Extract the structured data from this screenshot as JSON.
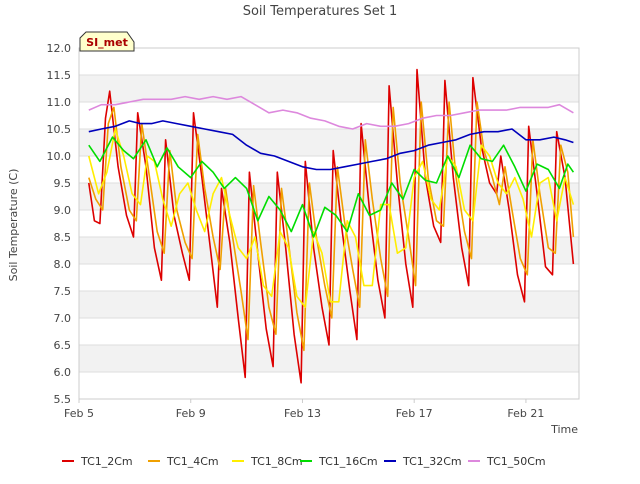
{
  "chart_data": {
    "type": "line",
    "title": "Soil Temperatures Set 1",
    "xlabel": "Time",
    "ylabel": "Soil Temperature (C)",
    "badge": "SI_met",
    "x_ticks": [
      "Feb 5",
      "Feb 9",
      "Feb 13",
      "Feb 17",
      "Feb 21"
    ],
    "y_ticks": [
      "5.5",
      "6.0",
      "6.5",
      "7.0",
      "7.5",
      "8.0",
      "8.5",
      "9.0",
      "9.5",
      "10.0",
      "10.5",
      "11.0",
      "11.5",
      "12.0"
    ],
    "xlim": [
      0,
      17.9
    ],
    "ylim": [
      5.5,
      12.0
    ],
    "legend_position": "bottom",
    "grid": true,
    "colors": {
      "TC1_2Cm": "#dd0000",
      "TC1_4Cm": "#f0a000",
      "TC1_8Cm": "#ffee00",
      "TC1_16Cm": "#00dd00",
      "TC1_32Cm": "#0000bb",
      "TC1_50Cm": "#dd88dd"
    },
    "series": [
      {
        "name": "TC1_2Cm",
        "x": [
          0.35,
          0.55,
          0.75,
          0.95,
          1.1,
          1.4,
          1.7,
          1.95,
          2.1,
          2.4,
          2.7,
          2.95,
          3.1,
          3.4,
          3.7,
          3.95,
          4.1,
          4.4,
          4.7,
          4.95,
          5.1,
          5.4,
          5.7,
          5.95,
          6.1,
          6.4,
          6.7,
          6.95,
          7.1,
          7.4,
          7.7,
          7.95,
          8.1,
          8.4,
          8.7,
          8.95,
          9.1,
          9.4,
          9.7,
          9.95,
          10.1,
          10.4,
          10.7,
          10.95,
          11.1,
          11.4,
          11.7,
          11.95,
          12.1,
          12.4,
          12.7,
          12.95,
          13.1,
          13.4,
          13.7,
          13.95,
          14.1,
          14.4,
          14.7,
          14.95,
          15.1,
          15.4,
          15.7,
          15.95,
          16.1,
          16.4,
          16.7,
          16.95,
          17.1,
          17.4,
          17.7
        ],
        "values": [
          9.5,
          8.8,
          8.75,
          10.7,
          11.2,
          9.8,
          8.9,
          8.5,
          10.8,
          9.8,
          8.3,
          7.7,
          10.3,
          8.9,
          8.2,
          7.7,
          10.8,
          9.6,
          8.3,
          7.2,
          9.4,
          8.4,
          7.0,
          5.9,
          9.7,
          8.2,
          6.8,
          6.1,
          9.7,
          8.3,
          6.7,
          5.8,
          9.9,
          8.3,
          7.2,
          6.5,
          10.1,
          8.7,
          7.5,
          6.6,
          10.6,
          9.0,
          7.7,
          7.0,
          11.3,
          9.5,
          8.0,
          7.2,
          11.6,
          9.6,
          8.7,
          8.4,
          11.4,
          9.6,
          8.3,
          7.6,
          11.45,
          10.2,
          9.5,
          9.3,
          10.0,
          9.0,
          7.8,
          7.3,
          10.55,
          9.3,
          7.95,
          7.8,
          10.45,
          9.6,
          8.0
        ]
      },
      {
        "name": "TC1_4Cm",
        "x": [
          0.35,
          0.6,
          0.85,
          1.05,
          1.25,
          1.5,
          1.8,
          2.05,
          2.25,
          2.5,
          2.8,
          3.05,
          3.25,
          3.5,
          3.8,
          4.05,
          4.25,
          4.5,
          4.8,
          5.05,
          5.25,
          5.5,
          5.8,
          6.05,
          6.25,
          6.5,
          6.8,
          7.05,
          7.25,
          7.5,
          7.8,
          8.05,
          8.25,
          8.5,
          8.8,
          9.05,
          9.25,
          9.5,
          9.8,
          10.05,
          10.25,
          10.5,
          10.8,
          11.05,
          11.25,
          11.5,
          11.8,
          12.05,
          12.25,
          12.5,
          12.8,
          13.05,
          13.25,
          13.5,
          13.8,
          14.05,
          14.25,
          14.5,
          14.8,
          15.05,
          15.25,
          15.5,
          15.8,
          16.05,
          16.25,
          16.5,
          16.8,
          17.05,
          17.25,
          17.5,
          17.7
        ],
        "values": [
          9.6,
          9.2,
          9.0,
          10.6,
          10.9,
          9.8,
          9.0,
          8.8,
          10.6,
          9.7,
          8.6,
          8.2,
          10.1,
          9.0,
          8.4,
          8.1,
          10.4,
          9.4,
          8.5,
          7.9,
          9.4,
          8.5,
          7.5,
          6.6,
          9.45,
          8.4,
          7.2,
          6.7,
          9.4,
          8.4,
          7.1,
          6.4,
          9.5,
          8.5,
          7.6,
          7.0,
          9.8,
          8.8,
          7.9,
          7.2,
          10.3,
          9.2,
          8.1,
          7.4,
          10.9,
          9.5,
          8.5,
          7.6,
          11.0,
          9.6,
          8.8,
          8.7,
          11.0,
          9.6,
          8.6,
          8.1,
          11.0,
          10.1,
          9.6,
          9.1,
          9.8,
          9.0,
          8.1,
          7.8,
          10.3,
          9.3,
          8.3,
          8.2,
          10.2,
          9.7,
          8.5
        ]
      },
      {
        "name": "TC1_8Cm",
        "x": [
          0.35,
          0.7,
          1.0,
          1.3,
          1.6,
          1.9,
          2.2,
          2.45,
          2.7,
          3.0,
          3.3,
          3.6,
          3.9,
          4.2,
          4.5,
          4.8,
          5.1,
          5.4,
          5.7,
          6.0,
          6.3,
          6.6,
          6.9,
          7.2,
          7.5,
          7.8,
          8.1,
          8.4,
          8.7,
          9.0,
          9.3,
          9.6,
          9.9,
          10.2,
          10.5,
          10.8,
          11.1,
          11.4,
          11.7,
          12.0,
          12.3,
          12.6,
          12.9,
          13.2,
          13.5,
          13.8,
          14.1,
          14.4,
          14.7,
          15.0,
          15.3,
          15.6,
          15.9,
          16.2,
          16.5,
          16.8,
          17.1,
          17.4,
          17.7
        ],
        "values": [
          10.0,
          9.3,
          9.7,
          10.5,
          10.0,
          9.3,
          9.1,
          10.0,
          9.9,
          9.2,
          8.7,
          9.3,
          9.5,
          9.0,
          8.6,
          9.3,
          9.6,
          8.9,
          8.3,
          8.1,
          8.5,
          7.6,
          7.4,
          8.6,
          8.3,
          7.4,
          7.2,
          8.6,
          8.2,
          7.3,
          7.3,
          8.8,
          8.5,
          7.6,
          7.6,
          9.1,
          9.1,
          8.2,
          8.3,
          9.6,
          9.9,
          9.2,
          9.0,
          10.0,
          9.8,
          9.0,
          8.8,
          10.2,
          10.0,
          9.5,
          9.3,
          9.6,
          9.2,
          8.5,
          9.5,
          9.6,
          8.8,
          9.6,
          9.1
        ]
      },
      {
        "name": "TC1_16Cm",
        "x": [
          0.35,
          0.75,
          1.2,
          1.6,
          1.95,
          2.4,
          2.8,
          3.15,
          3.55,
          4.0,
          4.4,
          4.8,
          5.2,
          5.6,
          6.0,
          6.4,
          6.8,
          7.2,
          7.6,
          8.0,
          8.4,
          8.8,
          9.2,
          9.6,
          10.0,
          10.4,
          10.8,
          11.2,
          11.6,
          12.0,
          12.4,
          12.8,
          13.2,
          13.6,
          14.0,
          14.4,
          14.8,
          15.2,
          15.6,
          16.0,
          16.4,
          16.8,
          17.2,
          17.5,
          17.7
        ],
        "values": [
          10.2,
          9.9,
          10.35,
          10.1,
          9.95,
          10.3,
          9.8,
          10.15,
          9.8,
          9.6,
          9.9,
          9.7,
          9.4,
          9.6,
          9.4,
          8.8,
          9.25,
          9.0,
          8.6,
          9.1,
          8.5,
          9.05,
          8.9,
          8.6,
          9.3,
          8.9,
          9.0,
          9.5,
          9.2,
          9.75,
          9.55,
          9.5,
          10.0,
          9.6,
          10.2,
          9.95,
          9.9,
          10.2,
          9.8,
          9.35,
          9.85,
          9.75,
          9.4,
          9.85,
          9.7
        ]
      },
      {
        "name": "TC1_32Cm",
        "x": [
          0.35,
          0.8,
          1.3,
          1.8,
          2.2,
          2.6,
          3.0,
          3.5,
          4.0,
          4.5,
          5.0,
          5.5,
          6.0,
          6.5,
          7.0,
          7.5,
          8.0,
          8.5,
          9.0,
          9.5,
          10.0,
          10.5,
          11.0,
          11.5,
          12.0,
          12.5,
          13.0,
          13.5,
          14.0,
          14.5,
          15.0,
          15.5,
          16.0,
          16.5,
          17.0,
          17.4,
          17.7
        ],
        "values": [
          10.45,
          10.5,
          10.55,
          10.65,
          10.6,
          10.6,
          10.65,
          10.6,
          10.55,
          10.5,
          10.45,
          10.4,
          10.2,
          10.05,
          10.0,
          9.9,
          9.8,
          9.75,
          9.75,
          9.8,
          9.85,
          9.9,
          9.95,
          10.05,
          10.1,
          10.2,
          10.25,
          10.3,
          10.4,
          10.45,
          10.45,
          10.5,
          10.3,
          10.3,
          10.35,
          10.3,
          10.25
        ]
      },
      {
        "name": "TC1_50Cm",
        "x": [
          0.35,
          0.8,
          1.3,
          1.8,
          2.3,
          2.8,
          3.3,
          3.8,
          4.3,
          4.8,
          5.3,
          5.8,
          6.3,
          6.8,
          7.3,
          7.8,
          8.3,
          8.8,
          9.3,
          9.8,
          10.3,
          10.8,
          11.3,
          11.8,
          12.3,
          12.8,
          13.3,
          13.8,
          14.3,
          14.8,
          15.3,
          15.8,
          16.3,
          16.8,
          17.2,
          17.7
        ],
        "values": [
          10.85,
          10.95,
          10.95,
          11.0,
          11.05,
          11.05,
          11.05,
          11.1,
          11.05,
          11.1,
          11.05,
          11.1,
          10.95,
          10.8,
          10.85,
          10.8,
          10.7,
          10.65,
          10.55,
          10.5,
          10.6,
          10.55,
          10.55,
          10.6,
          10.7,
          10.75,
          10.75,
          10.8,
          10.85,
          10.85,
          10.85,
          10.9,
          10.9,
          10.9,
          10.95,
          10.8
        ]
      }
    ]
  }
}
